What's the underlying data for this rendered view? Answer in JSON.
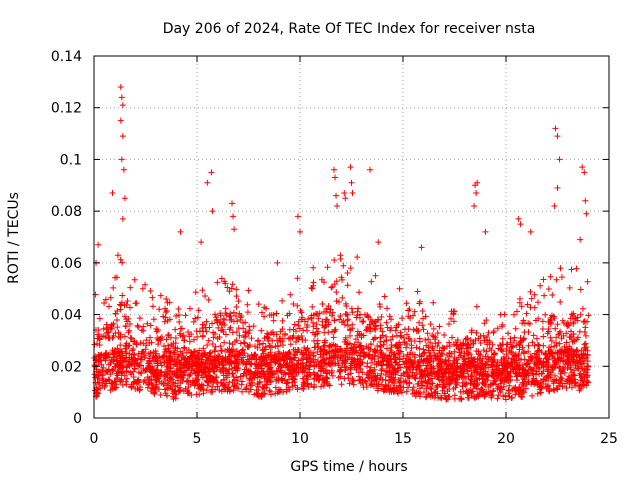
{
  "chart_data": {
    "type": "scatter",
    "title": "Day 206 of 2024, Rate Of TEC Index for receiver nsta",
    "xlabel": "GPS time / hours",
    "ylabel": "ROTI / TECUs",
    "xlim": [
      0,
      25
    ],
    "ylim": [
      0,
      0.14
    ],
    "xticks": [
      0,
      5,
      10,
      15,
      20,
      25
    ],
    "xtick_labels": [
      "0",
      "5",
      "10",
      "15",
      "20",
      "25"
    ],
    "yticks": [
      0,
      0.02,
      0.04,
      0.06,
      0.08,
      0.1,
      0.12,
      0.14
    ],
    "ytick_labels": [
      "0",
      "0.02",
      "0.04",
      "0.06",
      "0.08",
      "0.1",
      "0.12",
      "0.14"
    ],
    "grid": true,
    "marker": "plus",
    "color": "#ff0000",
    "data_range": [
      0,
      24
    ],
    "series": [
      {
        "name": "ROTI",
        "envelope": {
          "x": [
            0,
            0.5,
            1,
            1.5,
            2,
            3,
            4,
            5,
            6,
            7,
            8,
            9,
            10,
            11,
            12,
            12.5,
            13,
            14,
            15,
            16,
            17,
            18,
            19,
            20,
            21,
            22,
            23,
            24
          ],
          "upper": [
            0.05,
            0.045,
            0.06,
            0.07,
            0.055,
            0.05,
            0.045,
            0.05,
            0.06,
            0.06,
            0.045,
            0.05,
            0.055,
            0.06,
            0.07,
            0.065,
            0.06,
            0.055,
            0.05,
            0.05,
            0.04,
            0.045,
            0.045,
            0.04,
            0.05,
            0.055,
            0.06,
            0.055
          ],
          "baseline": [
            0.016,
            0.017,
            0.019,
            0.02,
            0.019,
            0.017,
            0.015,
            0.017,
            0.018,
            0.018,
            0.016,
            0.017,
            0.019,
            0.02,
            0.021,
            0.021,
            0.02,
            0.018,
            0.017,
            0.016,
            0.015,
            0.015,
            0.016,
            0.015,
            0.016,
            0.018,
            0.019,
            0.018
          ]
        },
        "outliers": [
          [
            1.3,
            0.128
          ],
          [
            1.35,
            0.124
          ],
          [
            1.4,
            0.121
          ],
          [
            1.3,
            0.115
          ],
          [
            1.4,
            0.109
          ],
          [
            1.35,
            0.1
          ],
          [
            1.45,
            0.096
          ],
          [
            1.5,
            0.085
          ],
          [
            1.4,
            0.077
          ],
          [
            0.9,
            0.087
          ],
          [
            0.2,
            0.067
          ],
          [
            0.1,
            0.06
          ],
          [
            5.5,
            0.091
          ],
          [
            5.7,
            0.095
          ],
          [
            5.75,
            0.08
          ],
          [
            5.2,
            0.068
          ],
          [
            6.7,
            0.083
          ],
          [
            6.75,
            0.078
          ],
          [
            6.8,
            0.073
          ],
          [
            4.2,
            0.072
          ],
          [
            8.9,
            0.06
          ],
          [
            9.9,
            0.078
          ],
          [
            10,
            0.072
          ],
          [
            11.65,
            0.096
          ],
          [
            11.7,
            0.093
          ],
          [
            11.75,
            0.086
          ],
          [
            11.8,
            0.082
          ],
          [
            12.15,
            0.087
          ],
          [
            12.2,
            0.085
          ],
          [
            12.45,
            0.097
          ],
          [
            12.5,
            0.091
          ],
          [
            12.55,
            0.087
          ],
          [
            13.4,
            0.096
          ],
          [
            13.8,
            0.068
          ],
          [
            15.9,
            0.066
          ],
          [
            18.5,
            0.09
          ],
          [
            18.55,
            0.087
          ],
          [
            18.6,
            0.091
          ],
          [
            18.45,
            0.082
          ],
          [
            19.0,
            0.072
          ],
          [
            20.6,
            0.077
          ],
          [
            20.7,
            0.075
          ],
          [
            21.2,
            0.072
          ],
          [
            22.4,
            0.112
          ],
          [
            22.5,
            0.109
          ],
          [
            22.6,
            0.1
          ],
          [
            22.5,
            0.089
          ],
          [
            22.35,
            0.082
          ],
          [
            23.7,
            0.097
          ],
          [
            23.8,
            0.095
          ],
          [
            23.85,
            0.084
          ],
          [
            23.9,
            0.079
          ],
          [
            23.6,
            0.069
          ]
        ]
      }
    ]
  }
}
